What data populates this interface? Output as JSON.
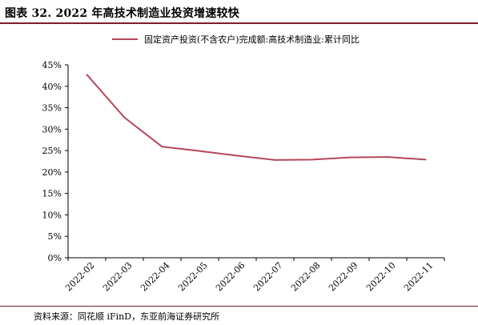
{
  "figure": {
    "title": "图表 32. 2022 年高技术制造业投资增速较快",
    "source": "资料来源：同花顺 iFinD，东亚前海证券研究所"
  },
  "colors": {
    "line": "#b5475a",
    "rule": "#7a1f2b",
    "axis": "#000000"
  },
  "chart_data": {
    "type": "line",
    "x": [
      "2022-02",
      "2022-03",
      "2022-04",
      "2022-05",
      "2022-06",
      "2022-07",
      "2022-08",
      "2022-09",
      "2022-10",
      "2022-11"
    ],
    "series": [
      {
        "name": "固定资产投资(不含农户)完成额:高技术制造业:累计同比",
        "values": [
          42.7,
          32.7,
          25.9,
          24.9,
          23.8,
          22.8,
          22.9,
          23.4,
          23.5,
          22.9
        ]
      }
    ],
    "yticks": [
      "0%",
      "5%",
      "10%",
      "15%",
      "20%",
      "25%",
      "30%",
      "35%",
      "40%",
      "45%"
    ],
    "ylim": [
      0,
      45
    ],
    "grid": false,
    "legend": "top"
  }
}
